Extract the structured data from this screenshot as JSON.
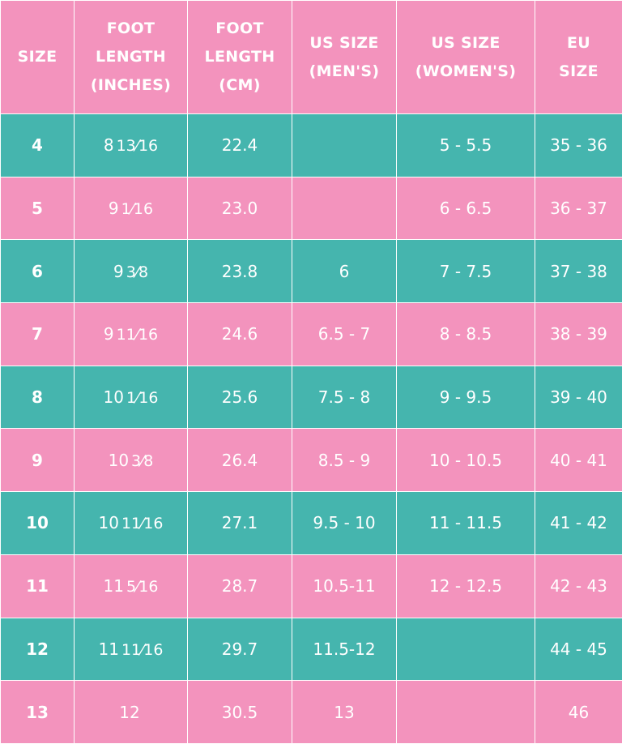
{
  "headers": {
    "size": [
      "SIZE"
    ],
    "foot_in": [
      "FOOT",
      "LENGTH",
      "(INCHES)"
    ],
    "foot_cm": [
      "FOOT",
      "LENGTH",
      "(CM)"
    ],
    "us_men": [
      "US SIZE",
      "(MEN'S)"
    ],
    "us_women": [
      "US SIZE",
      "(WOMEN'S)"
    ],
    "eu": [
      "EU",
      "SIZE"
    ]
  },
  "colors": {
    "pink": "#f393bd",
    "teal": "#45b5ae",
    "text": "#ffffff",
    "grid": "#ffffff"
  },
  "rows": [
    {
      "size": "4",
      "in_whole": "8",
      "in_frac": "13⁄16",
      "cm": "22.4",
      "us_men": "",
      "us_women": "5 - 5.5",
      "eu": "35 - 36"
    },
    {
      "size": "5",
      "in_whole": "9",
      "in_frac": "1⁄16",
      "cm": "23.0",
      "us_men": "",
      "us_women": "6 - 6.5",
      "eu": "36 - 37"
    },
    {
      "size": "6",
      "in_whole": "9",
      "in_frac": "3⁄8",
      "cm": "23.8",
      "us_men": "6",
      "us_women": "7 - 7.5",
      "eu": "37 - 38"
    },
    {
      "size": "7",
      "in_whole": "9",
      "in_frac": "11⁄16",
      "cm": "24.6",
      "us_men": "6.5 - 7",
      "us_women": "8 - 8.5",
      "eu": "38 - 39"
    },
    {
      "size": "8",
      "in_whole": "10",
      "in_frac": "1⁄16",
      "cm": "25.6",
      "us_men": "7.5 - 8",
      "us_women": "9 - 9.5",
      "eu": "39 - 40"
    },
    {
      "size": "9",
      "in_whole": "10",
      "in_frac": "3⁄8",
      "cm": "26.4",
      "us_men": "8.5 - 9",
      "us_women": "10 - 10.5",
      "eu": "40 - 41"
    },
    {
      "size": "10",
      "in_whole": "10",
      "in_frac": "11⁄16",
      "cm": "27.1",
      "us_men": "9.5 - 10",
      "us_women": "11 - 11.5",
      "eu": "41 - 42"
    },
    {
      "size": "11",
      "in_whole": "11",
      "in_frac": "5⁄16",
      "cm": "28.7",
      "us_men": "10.5-11",
      "us_women": "12 - 12.5",
      "eu": "42 - 43"
    },
    {
      "size": "12",
      "in_whole": "11",
      "in_frac": "11⁄16",
      "cm": "29.7",
      "us_men": "11.5-12",
      "us_women": "",
      "eu": "44 - 45"
    },
    {
      "size": "13",
      "in_whole": "12",
      "in_frac": "",
      "cm": "30.5",
      "us_men": "13",
      "us_women": "",
      "eu": "46"
    }
  ]
}
